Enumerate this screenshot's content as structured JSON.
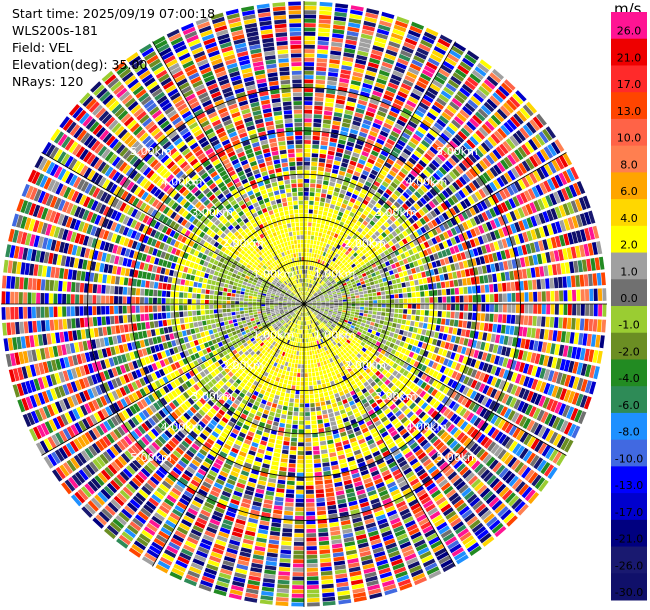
{
  "header": {
    "start_time": "Start time: 2025/09/19 07:00:18",
    "site": "WLS200s-181",
    "field": "Field: VEL",
    "elevation": "Elevation(deg): 35.00",
    "nrays": "NRays: 120"
  },
  "colorbar": {
    "unit": "m/s",
    "levels": [
      "26.0",
      "21.0",
      "17.0",
      "13.0",
      "10.0",
      "8.0",
      "6.0",
      "4.0",
      "2.0",
      "1.0",
      "0.0",
      "-1.0",
      "-2.0",
      "-4.0",
      "-6.0",
      "-8.0",
      "-10.0",
      "-13.0",
      "-17.0",
      "-21.0",
      "-26.0",
      "-30.0"
    ],
    "colors": [
      "#ff1493",
      "#ee0000",
      "#ff2a2a",
      "#ff4500",
      "#ff6347",
      "#ff7f50",
      "#ffa500",
      "#ffd700",
      "#ffff00",
      "#a0a0a0",
      "#707070",
      "#9acd32",
      "#6b8e23",
      "#228b22",
      "#2e8b57",
      "#1e90ff",
      "#4169e1",
      "#0000ff",
      "#0000cd",
      "#000080",
      "#191970",
      "#10106a"
    ]
  },
  "chart_data": {
    "type": "heatmap",
    "subtype": "polar-ppi",
    "field": "VEL",
    "units": "m/s",
    "nrays": 120,
    "max_range_km": 7.0,
    "range_rings_km": [
      1.0,
      2.0,
      3.0,
      4.0,
      5.0
    ],
    "ring_labels": [
      "1.00km",
      "2.00km",
      "3.00km",
      "4.00km",
      "5.00km"
    ],
    "spokes_deg": [
      0,
      30,
      60,
      90,
      120,
      150,
      180,
      210,
      240,
      270,
      300,
      330
    ],
    "description_regions": [
      {
        "range_km": [
          0,
          1.0
        ],
        "dominant": "gray / light green (near zero)"
      },
      {
        "range_km": [
          1.0,
          2.2
        ],
        "dominant": "yellow (+2) toward north and south, green (-1..-2) toward west and east"
      },
      {
        "range_km": [
          2.2,
          3.0
        ],
        "dominant": "yellow-green transition with gray"
      },
      {
        "range_km": [
          3.0,
          7.0
        ],
        "dominant": "noisy mixed colors across full scale"
      }
    ]
  }
}
